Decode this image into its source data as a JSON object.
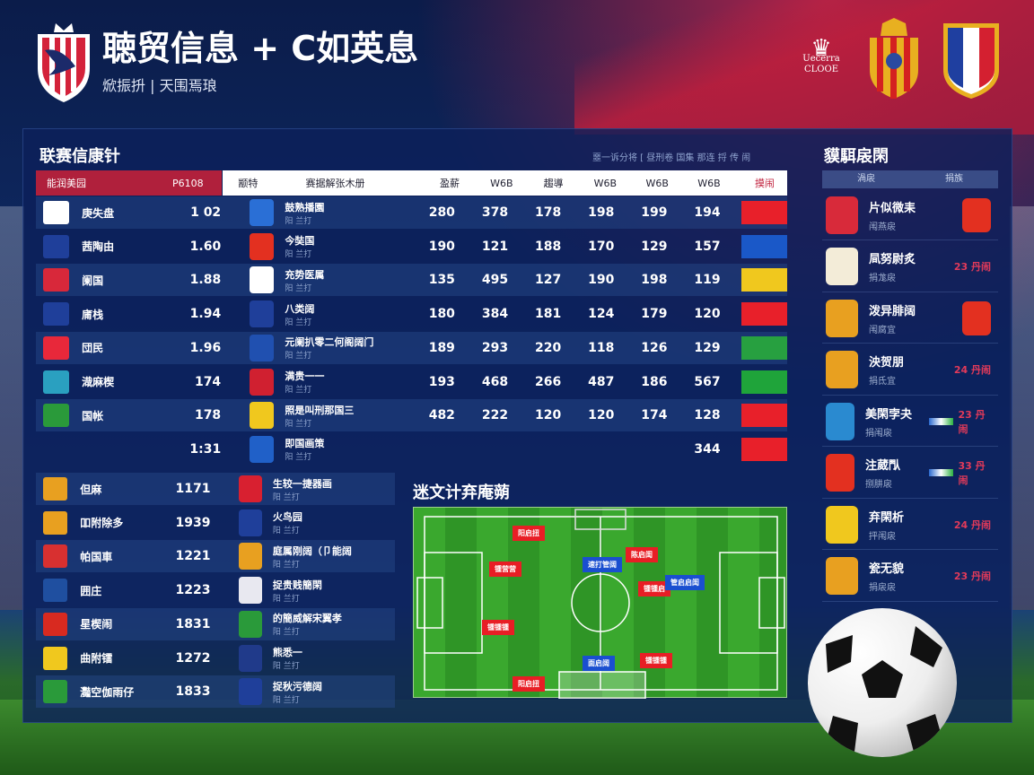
{
  "header": {
    "title": "聴贸信息 + C如英息",
    "subtitle": "焮振抍 | 天围焉琅"
  },
  "top_logos": [
    "Uecerra CLOOE"
  ],
  "league": {
    "title": "联赛信康针",
    "col_country": "能润美园",
    "col_value": "P6108",
    "col_team": "颛特",
    "col_team2": "赛据解张木册",
    "num_headers": [
      "盈薪",
      "W6B",
      "趨導",
      "W6B",
      "W6B",
      "W6B"
    ],
    "badge_header": "摸闹",
    "note": "噩一诉分将 [ 昼刑卷 国集 那连 捋 传 闹",
    "rows": [
      {
        "name": "庚失盘",
        "value": "1 02",
        "team": "鼓熟播園",
        "sub": "阳 兰打",
        "nums": [
          "280",
          "378",
          "178",
          "198",
          "199",
          "194"
        ],
        "flag": "#ffffff",
        "crest": "#2a6fd6",
        "badge": "#e8202a"
      },
      {
        "name": "茜陶由",
        "value": "1.60",
        "team": "今奘国",
        "sub": "阳 兰打",
        "nums": [
          "190",
          "121",
          "188",
          "170",
          "129",
          "157"
        ],
        "flag": "#1f3f9a",
        "crest": "#e33020",
        "badge": "#1a58c8"
      },
      {
        "name": "阑国",
        "value": "1.88",
        "team": "充势医属",
        "sub": "阳 兰打",
        "nums": [
          "135",
          "495",
          "127",
          "190",
          "198",
          "119"
        ],
        "flag": "#d8283a",
        "crest": "#ffffff",
        "badge": "#f0c81e"
      },
      {
        "name": "庯栈",
        "value": "1.94",
        "team": "八类阔",
        "sub": "阳 兰打",
        "nums": [
          "180",
          "384",
          "181",
          "124",
          "179",
          "120"
        ],
        "flag": "#1f3f9a",
        "crest": "#1f3f9a",
        "badge": "#e8202a"
      },
      {
        "name": "団民",
        "value": "1.96",
        "team": "元阑扒零二何阁阔门",
        "sub": "阳 兰打",
        "nums": [
          "189",
          "293",
          "220",
          "118",
          "126",
          "129"
        ],
        "flag": "#e8283a",
        "crest": "#2050b0",
        "badge": "#27a040"
      },
      {
        "name": "渽麻楔",
        "value": "174",
        "team": "满贵一一",
        "sub": "阳 兰打",
        "nums": [
          "193",
          "468",
          "266",
          "487",
          "186",
          "567"
        ],
        "flag": "#2aa0c0",
        "crest": "#d02030",
        "badge": "#1fa43a"
      },
      {
        "name": "国帐",
        "value": "178",
        "team": "照是叫刑那国三",
        "sub": "阳 兰打",
        "nums": [
          "482",
          "222",
          "120",
          "120",
          "174",
          "128"
        ],
        "flag": "#2a9a3a",
        "crest": "#f0c81e",
        "badge": "#e8202a"
      },
      {
        "name": "",
        "value": "1:31",
        "team": "即国画策",
        "sub": "阳 兰打",
        "nums": [
          "",
          "",
          "",
          "",
          "",
          "344"
        ],
        "flag": "transparent",
        "crest": "#2060c8",
        "badge": "#e8202a"
      }
    ],
    "rows2": [
      {
        "name": "但麻",
        "value": "1171",
        "team": "生较一捷器画",
        "sub": "阳 兰打",
        "flag": "#e8a020",
        "crest": "#d82030"
      },
      {
        "name": "吅附除多",
        "value": "1939",
        "team": "火鸟园",
        "sub": "阳 兰打",
        "flag": "#e8a020",
        "crest": "#1f3f9a"
      },
      {
        "name": "帕国車",
        "value": "1221",
        "team": "庭属刚阔（卩能阔",
        "sub": "阳 兰打",
        "flag": "#d83030",
        "crest": "#e8a020"
      },
      {
        "name": "囲庄",
        "value": "1223",
        "team": "捉贵贱簡閑",
        "sub": "阳 兰打",
        "flag": "#1f4fa0",
        "crest": "#e8e8f0"
      },
      {
        "name": "星楔闹",
        "value": "1831",
        "team": "的簡威解宋翼孝",
        "sub": "阳 兰打",
        "flag": "#d82a20",
        "crest": "#2a9a3a"
      },
      {
        "name": "曲附镭",
        "value": "1272",
        "team": "熊悉一",
        "sub": "阳 兰打",
        "flag": "#f0c81e",
        "crest": "#203a8a"
      },
      {
        "name": "灩空伽雨仔",
        "value": "1833",
        "team": "捉秋污德阔",
        "sub": "阳 兰打",
        "flag": "#2a9a3a",
        "crest": "#1f3f9a"
      }
    ]
  },
  "standings": {
    "title": "貘駬扆閑",
    "col1": "渦扆",
    "col2": "捐族",
    "rows": [
      {
        "name": "片似微耒",
        "sub": "闱燕扆",
        "crest": "#d82a3a",
        "badge": "#e33020",
        "score": ""
      },
      {
        "name": "凬努尉炙",
        "sub": "捐尨扆",
        "crest": "#f3ecd8",
        "badge": "",
        "score": "23 丹闹"
      },
      {
        "name": "泼异腓阔",
        "sub": "闱腐宜",
        "crest": "#e8a020",
        "badge": "#e33020",
        "score": ""
      },
      {
        "name": "泱贺朋",
        "sub": "捐氐宜",
        "crest": "#e8a020",
        "badge": "",
        "score": "24 丹闹"
      },
      {
        "name": "美閑孛夬",
        "sub": "捐闱扆",
        "crest": "#2a8ad0",
        "badge": "",
        "score": "23 丹闹"
      },
      {
        "name": "注葳閄",
        "sub": "捌肼扆",
        "crest": "#e33020",
        "badge": "",
        "score": "33 丹闹"
      },
      {
        "name": "弃閑析",
        "sub": "抨闱扆",
        "crest": "#f0c81e",
        "badge": "",
        "score": "24 丹闹"
      },
      {
        "name": "瓷无貌",
        "sub": "捐扆扆",
        "crest": "#e8a020",
        "badge": "",
        "score": "23 丹闹"
      }
    ]
  },
  "formation": {
    "title": "迷文计弃庵蒴",
    "red_tags": [
      "阳启扭",
      "锺营营",
      "锺锺锺",
      "陈启闺",
      "锺锺启",
      "锺锺锺",
      "阳启扭"
    ],
    "blue_tags": [
      "速打管阔",
      "管启启闺",
      "面启阔"
    ]
  },
  "colors": {
    "accent_red": "#b0203c",
    "panel": "#0c205a",
    "pitch": "#3aa82e"
  }
}
